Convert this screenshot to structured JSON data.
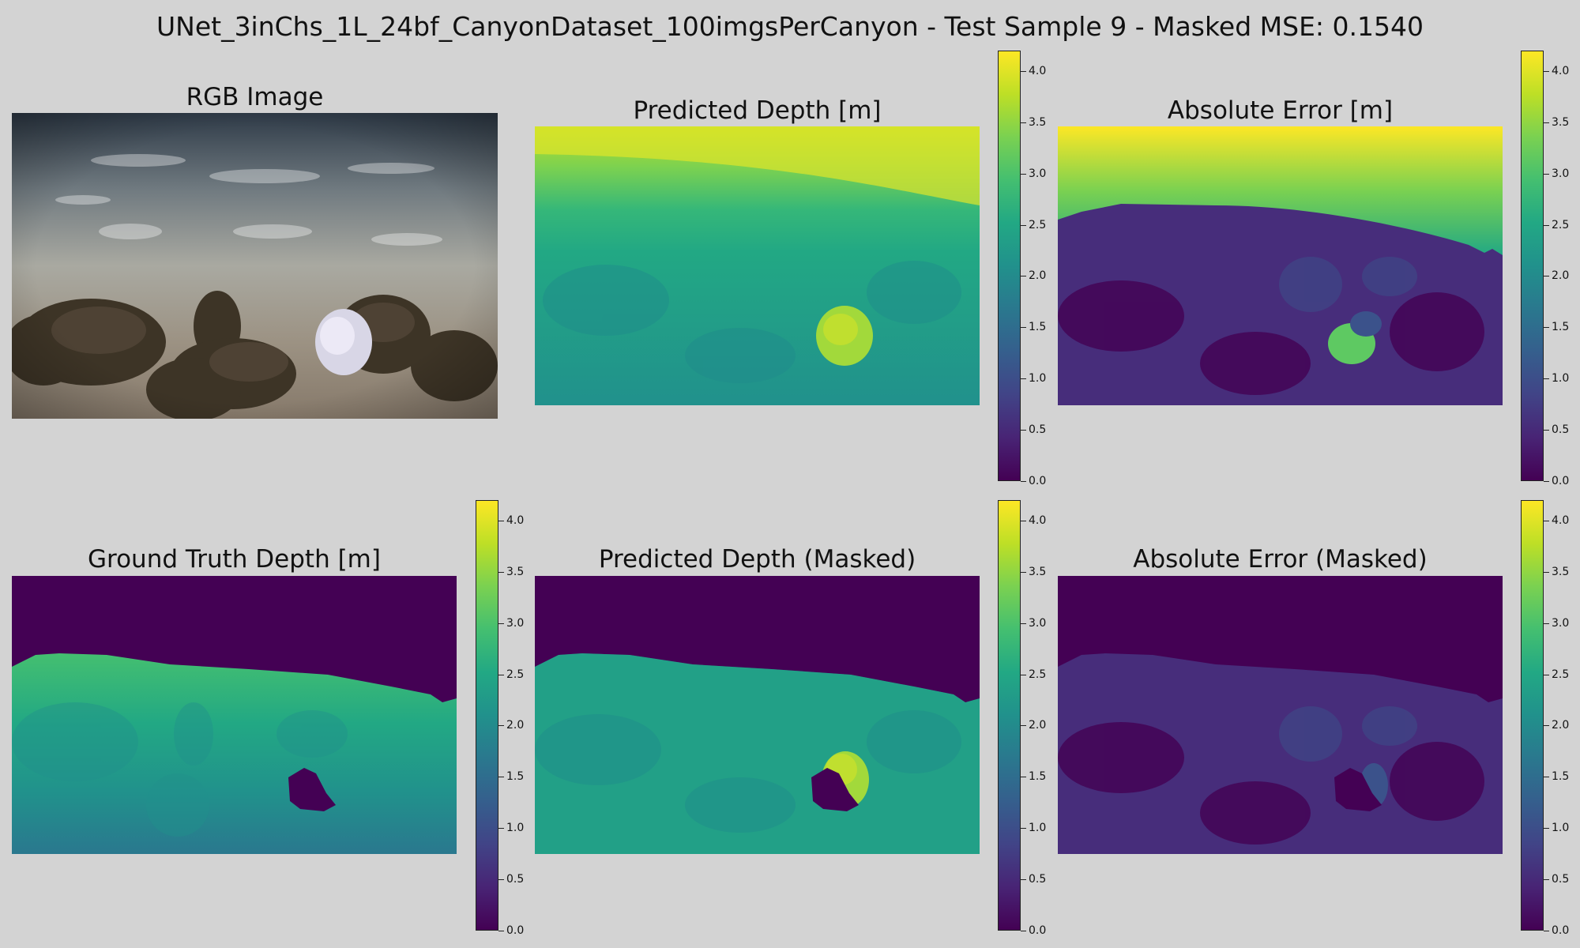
{
  "figure": {
    "title": "UNet_3inChs_1L_24bf_CanyonDataset_100imgsPerCanyon - Test Sample 9 - Masked MSE: 0.1540"
  },
  "panels": {
    "rgb": {
      "title": "RGB Image"
    },
    "pred": {
      "title": "Predicted Depth [m]"
    },
    "err": {
      "title": "Absolute Error [m]"
    },
    "gt": {
      "title": "Ground Truth Depth [m]"
    },
    "pred_masked": {
      "title": "Predicted Depth (Masked)"
    },
    "err_masked": {
      "title": "Absolute Error (Masked)"
    }
  },
  "colorbar": {
    "colormap": "viridis",
    "range": [
      0.0,
      4.2
    ],
    "ticks": [
      "0.0",
      "0.5",
      "1.0",
      "1.5",
      "2.0",
      "2.5",
      "3.0",
      "3.5",
      "4.0"
    ]
  },
  "colors": {
    "background": "#d3d3d3",
    "viridis_low": "#440154",
    "viridis_high": "#fde725"
  }
}
